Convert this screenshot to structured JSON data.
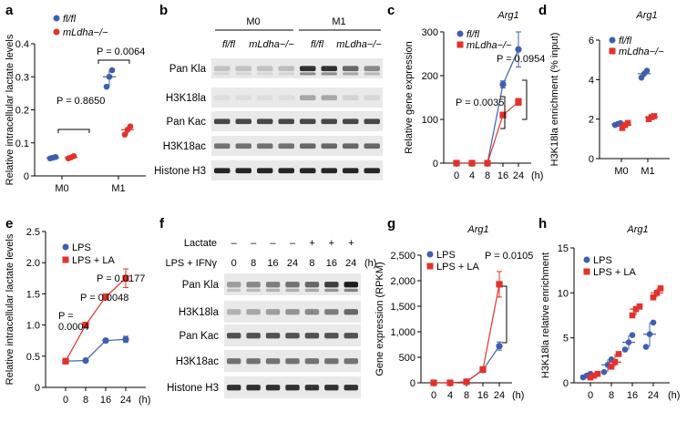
{
  "colors": {
    "blue": "#3f5fae",
    "red": "#e3322b",
    "blot_bg": "#e9e9e9"
  },
  "panels": {
    "a": {
      "letter": "a",
      "ylabel": "Relative intracellular lactate levels",
      "yticks": [
        "0",
        "0.1",
        "0.2",
        "0.3",
        "0.4"
      ],
      "xticks": [
        "M0",
        "M1"
      ],
      "legend": [
        "fl/fl",
        "mLdha−/−"
      ],
      "p_values": [
        "P = 0.8650",
        "P = 0.0064"
      ]
    },
    "b": {
      "letter": "b",
      "groups": [
        "M0",
        "M1"
      ],
      "genotypes": [
        "fl/fl",
        "mLdha−/−",
        "fl/fl",
        "mLdha−/−"
      ],
      "rows": [
        "Pan Kla",
        "H3K18la",
        "Pan Kac",
        "H3K18ac",
        "Histone H3"
      ]
    },
    "c": {
      "letter": "c",
      "title": "Arg1",
      "ylabel": "Relative gene expression",
      "yticks": [
        "0",
        "100",
        "200",
        "300"
      ],
      "xticks": [
        "0",
        "4",
        "8",
        "16",
        "24"
      ],
      "xunit": "(h)",
      "legend": [
        "fl/fl",
        "mLdha−/−"
      ],
      "p_values": [
        "P = 0.0954",
        "P = 0.0035"
      ]
    },
    "d": {
      "letter": "d",
      "title": "Arg1",
      "ylabel": "H3K18la enrichment (% input)",
      "yticks": [
        "0",
        "2",
        "4",
        "6"
      ],
      "xticks": [
        "M0",
        "M1"
      ],
      "legend": [
        "fl/fl",
        "mLdha−/−"
      ]
    },
    "e": {
      "letter": "e",
      "ylabel": "Relative intracellular lactate levels",
      "yticks": [
        "0",
        "0.5",
        "1.0",
        "1.5",
        "2.0",
        "2.5"
      ],
      "xticks": [
        "0",
        "8",
        "16",
        "24"
      ],
      "xunit": "(h)",
      "legend": [
        "LPS",
        "LPS + LA"
      ],
      "p_values": [
        "P = 0.0177",
        "P = 0.0048",
        "P =",
        "0.0004"
      ]
    },
    "f": {
      "letter": "f",
      "lactate_label": "Lactate",
      "lactate_signs": [
        "–",
        "–",
        "–",
        "–",
        "+",
        "+",
        "+"
      ],
      "time_label": "LPS + IFNγ",
      "times": [
        "0",
        "8",
        "16",
        "24",
        "8",
        "16",
        "24"
      ],
      "time_unit": "(h)",
      "rows": [
        "Pan Kla",
        "H3K18la",
        "Pan Kac",
        "H3K18ac",
        "Histone H3"
      ]
    },
    "g": {
      "letter": "g",
      "title": "Arg1",
      "ylabel": "Gene expression (RPKM)",
      "yticks": [
        "0",
        "500",
        "1,000",
        "1,500",
        "2,000",
        "2,500"
      ],
      "xticks": [
        "0",
        "4",
        "8",
        "16",
        "24"
      ],
      "xunit": "(h)",
      "legend": [
        "LPS",
        "LPS + LA"
      ],
      "p_values": [
        "P = 0.0105"
      ]
    },
    "h": {
      "letter": "h",
      "title": "Arg1",
      "ylabel": "H3K18la relative enrichment",
      "yticks": [
        "0",
        "5",
        "10",
        "15"
      ],
      "xticks": [
        "0",
        "8",
        "16",
        "24"
      ],
      "xunit": "(h)",
      "legend": [
        "LPS",
        "LPS + LA"
      ]
    }
  },
  "chart_data": [
    {
      "panel": "a",
      "type": "scatter",
      "categories": [
        "M0",
        "M1"
      ],
      "series": [
        {
          "name": "fl/fl",
          "mean": [
            0.055,
            0.3
          ],
          "points": [
            [
              0.053,
              0.055,
              0.057
            ],
            [
              0.27,
              0.3,
              0.32
            ]
          ]
        },
        {
          "name": "mLdha−/−",
          "mean": [
            0.056,
            0.14
          ],
          "points": [
            [
              0.053,
              0.056,
              0.06
            ],
            [
              0.125,
              0.14,
              0.15
            ]
          ]
        }
      ],
      "ylabel": "Relative intracellular lactate levels",
      "ylim": [
        0,
        0.4
      ]
    },
    {
      "panel": "c",
      "type": "line",
      "title": "Arg1",
      "x": [
        0,
        4,
        8,
        16,
        24
      ],
      "series": [
        {
          "name": "fl/fl",
          "values": [
            0,
            0,
            0,
            180,
            260
          ],
          "error": [
            0,
            0,
            0,
            8,
            40
          ]
        },
        {
          "name": "mLdha−/−",
          "values": [
            0,
            0,
            0,
            110,
            140
          ],
          "error": [
            0,
            0,
            0,
            6,
            8
          ]
        }
      ],
      "xlabel": "(h)",
      "ylabel": "Relative gene expression",
      "ylim": [
        0,
        300
      ]
    },
    {
      "panel": "d",
      "type": "scatter",
      "title": "Arg1",
      "categories": [
        "M0",
        "M1"
      ],
      "series": [
        {
          "name": "fl/fl",
          "mean": [
            1.75,
            4.3
          ],
          "points": [
            [
              1.7,
              1.75,
              1.8
            ],
            [
              4.1,
              4.3,
              4.45
            ]
          ]
        },
        {
          "name": "mLdha−/−",
          "mean": [
            1.7,
            2.1
          ],
          "points": [
            [
              1.55,
              1.7,
              1.8
            ],
            [
              2.0,
              2.1,
              2.15
            ]
          ]
        }
      ],
      "ylabel": "H3K18la enrichment (% input)",
      "ylim": [
        0,
        6
      ]
    },
    {
      "panel": "e",
      "type": "line",
      "x": [
        0,
        8,
        16,
        24
      ],
      "series": [
        {
          "name": "LPS",
          "values": [
            0.42,
            0.43,
            0.75,
            0.77
          ],
          "error": [
            0.02,
            0.02,
            0.02,
            0.05
          ]
        },
        {
          "name": "LPS + LA",
          "values": [
            0.42,
            1.0,
            1.45,
            1.75
          ],
          "error": [
            0.02,
            0.03,
            0.05,
            0.15
          ]
        }
      ],
      "xlabel": "(h)",
      "ylabel": "Relative intracellular lactate levels",
      "ylim": [
        0,
        2.5
      ]
    },
    {
      "panel": "g",
      "type": "line",
      "title": "Arg1",
      "x": [
        0,
        4,
        8,
        16,
        24
      ],
      "series": [
        {
          "name": "LPS",
          "values": [
            0,
            0,
            20,
            250,
            720
          ],
          "error": [
            0,
            0,
            5,
            40,
            80
          ]
        },
        {
          "name": "LPS + LA",
          "values": [
            0,
            0,
            20,
            260,
            1930
          ],
          "error": [
            0,
            0,
            5,
            40,
            250
          ]
        }
      ],
      "xlabel": "(h)",
      "ylabel": "Gene expression (RPKM)",
      "ylim": [
        0,
        2500
      ]
    },
    {
      "panel": "h",
      "type": "scatter",
      "title": "Arg1",
      "categories": [
        "0",
        "8",
        "16",
        "24"
      ],
      "series": [
        {
          "name": "LPS",
          "mean": [
            0.8,
            2.0,
            4.5,
            5.4
          ],
          "points": [
            [
              0.6,
              0.8,
              1.0
            ],
            [
              1.2,
              2.0,
              2.6
            ],
            [
              3.7,
              4.5,
              5.3
            ],
            [
              4.0,
              5.4,
              6.7
            ]
          ]
        },
        {
          "name": "LPS + LA",
          "mean": [
            0.8,
            2.3,
            8.2,
            10.0
          ],
          "points": [
            [
              0.6,
              0.8,
              1.0
            ],
            [
              1.8,
              2.3,
              3.2
            ],
            [
              7.5,
              8.2,
              8.5
            ],
            [
              9.5,
              10.0,
              10.5
            ]
          ]
        }
      ],
      "xlabel": "(h)",
      "ylabel": "H3K18la relative enrichment",
      "ylim": [
        0,
        15
      ]
    }
  ]
}
